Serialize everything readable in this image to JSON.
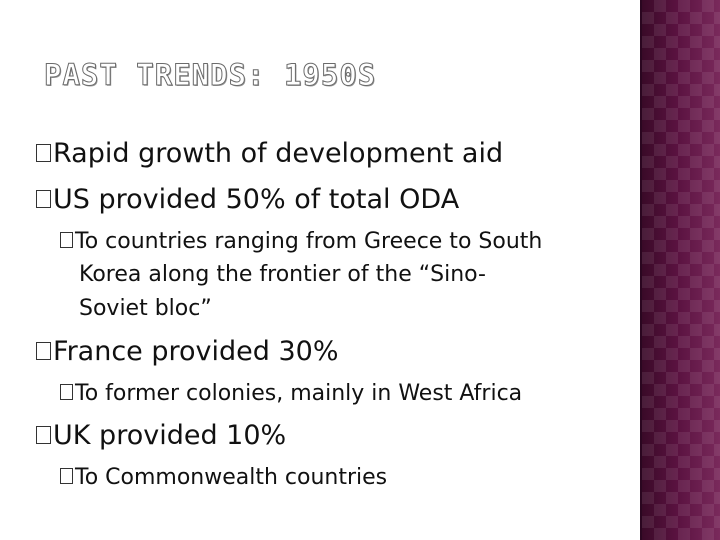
{
  "slide": {
    "title": "PAST TRENDS: 1950S",
    "bullets": {
      "b1": "Rapid growth of development aid",
      "b2": "US provided 50% of total ODA",
      "b2_sub_line1": "To countries ranging from Greece to South",
      "b2_sub_line2": "Korea along the frontier of the “Sino-",
      "b2_sub_line3": "Soviet bloc”",
      "b3": "France provided 30%",
      "b3_sub": "To former colonies, mainly in West Africa",
      "b4": "UK provided 10%",
      "b4_sub": "To Commonwealth countries"
    },
    "colors": {
      "side_band": "#5a1240",
      "text": "#111111"
    }
  }
}
